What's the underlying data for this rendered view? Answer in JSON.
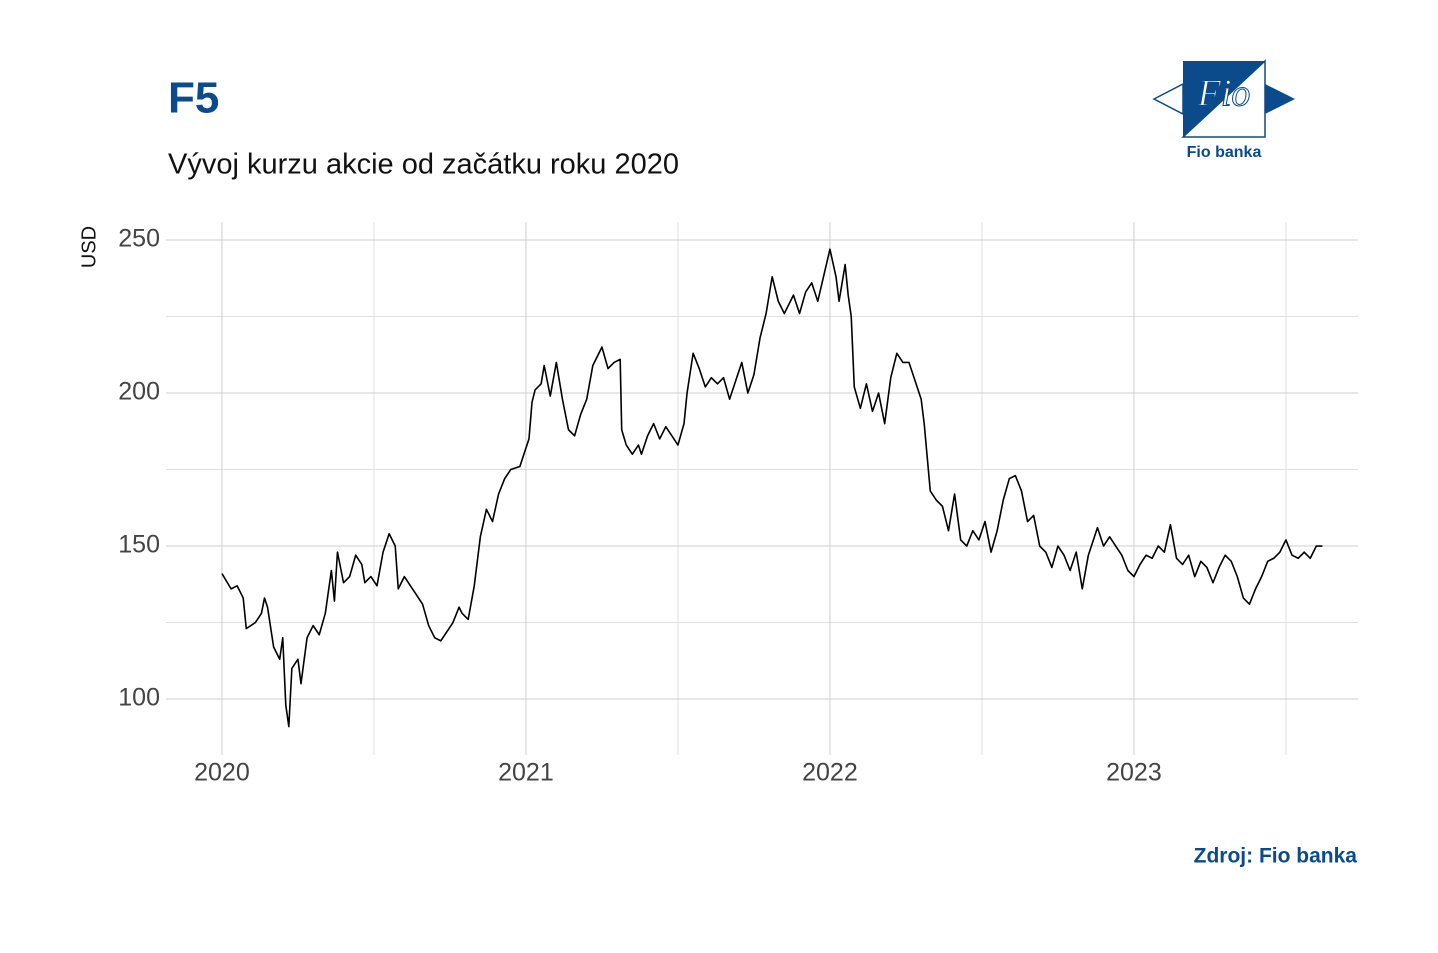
{
  "chart_data": {
    "type": "line",
    "title": "F5",
    "subtitle": "Vývoj kurzu akcie od začátku roku 2020",
    "y_label": "USD",
    "source": "Zdroj: Fio banka",
    "logo_text": "Fio",
    "logo_caption": "Fio banka",
    "grid": true,
    "minor_grid": true,
    "xlim": [
      2019.816,
      2023.737
    ],
    "xticks": [
      2020,
      2021,
      2022,
      2023
    ],
    "ylim": [
      81.7,
      255.9
    ],
    "yticks": [
      100,
      150,
      200,
      250
    ],
    "x": [
      2020.0,
      2020.03,
      2020.05,
      2020.07,
      2020.08,
      2020.11,
      2020.13,
      2020.14,
      2020.15,
      2020.17,
      2020.19,
      2020.2,
      2020.21,
      2020.22,
      2020.23,
      2020.25,
      2020.26,
      2020.28,
      2020.3,
      2020.32,
      2020.34,
      2020.36,
      2020.37,
      2020.38,
      2020.4,
      2020.42,
      2020.44,
      2020.46,
      2020.47,
      2020.49,
      2020.51,
      2020.53,
      2020.55,
      2020.57,
      2020.58,
      2020.6,
      2020.62,
      2020.64,
      2020.66,
      2020.68,
      2020.7,
      2020.72,
      2020.74,
      2020.76,
      2020.78,
      2020.79,
      2020.81,
      2020.83,
      2020.85,
      2020.87,
      2020.89,
      2020.91,
      2020.93,
      2020.95,
      2020.98,
      2021.01,
      2021.02,
      2021.03,
      2021.05,
      2021.06,
      2021.08,
      2021.1,
      2021.12,
      2021.14,
      2021.16,
      2021.18,
      2021.2,
      2021.22,
      2021.25,
      2021.27,
      2021.29,
      2021.31,
      2021.315,
      2021.33,
      2021.35,
      2021.37,
      2021.38,
      2021.4,
      2021.42,
      2021.44,
      2021.46,
      2021.48,
      2021.5,
      2021.52,
      2021.53,
      2021.55,
      2021.57,
      2021.59,
      2021.61,
      2021.63,
      2021.65,
      2021.67,
      2021.69,
      2021.71,
      2021.73,
      2021.75,
      2021.77,
      2021.79,
      2021.81,
      2021.83,
      2021.85,
      2021.88,
      2021.9,
      2021.92,
      2021.94,
      2021.96,
      2022.0,
      2022.02,
      2022.03,
      2022.05,
      2022.06,
      2022.07,
      2022.08,
      2022.1,
      2022.12,
      2022.14,
      2022.16,
      2022.18,
      2022.2,
      2022.22,
      2022.24,
      2022.26,
      2022.28,
      2022.3,
      2022.31,
      2022.33,
      2022.35,
      2022.37,
      2022.39,
      2022.41,
      2022.43,
      2022.45,
      2022.47,
      2022.49,
      2022.51,
      2022.53,
      2022.55,
      2022.57,
      2022.59,
      2022.61,
      2022.63,
      2022.65,
      2022.67,
      2022.69,
      2022.71,
      2022.73,
      2022.75,
      2022.77,
      2022.79,
      2022.81,
      2022.83,
      2022.85,
      2022.88,
      2022.9,
      2022.92,
      2022.94,
      2022.96,
      2022.98,
      2023.0,
      2023.02,
      2023.04,
      2023.06,
      2023.08,
      2023.1,
      2023.12,
      2023.14,
      2023.16,
      2023.18,
      2023.2,
      2023.22,
      2023.24,
      2023.26,
      2023.28,
      2023.3,
      2023.32,
      2023.34,
      2023.36,
      2023.38,
      2023.4,
      2023.42,
      2023.44,
      2023.46,
      2023.48,
      2023.5,
      2023.52,
      2023.54,
      2023.56,
      2023.58,
      2023.6,
      2023.62
    ],
    "series": [
      {
        "name": "F5",
        "color": "#000000",
        "values": [
          141,
          136,
          137,
          133,
          123,
          125,
          128,
          133,
          130,
          117,
          113,
          120,
          98,
          91,
          110,
          113,
          105,
          120,
          124,
          121,
          128,
          142,
          132,
          148,
          138,
          140,
          147,
          144,
          138,
          140,
          137,
          148,
          154,
          150,
          136,
          140,
          137,
          134,
          131,
          124,
          120,
          119,
          122,
          125,
          130,
          128,
          126,
          137,
          153,
          162,
          158,
          167,
          172,
          175,
          176,
          185,
          197,
          201,
          203,
          209,
          199,
          210,
          198,
          188,
          186,
          193,
          198,
          209,
          215,
          208,
          210,
          211,
          188,
          183,
          180,
          183,
          180,
          186,
          190,
          185,
          189,
          186,
          183,
          190,
          200,
          213,
          208,
          202,
          205,
          203,
          205,
          198,
          204,
          210,
          200,
          206,
          218,
          226,
          238,
          230,
          226,
          232,
          226,
          233,
          236,
          230,
          247,
          238,
          230,
          242,
          232,
          225,
          202,
          195,
          203,
          194,
          200,
          190,
          205,
          213,
          210,
          210,
          204,
          198,
          190,
          168,
          165,
          163,
          155,
          167,
          152,
          150,
          155,
          152,
          158,
          148,
          155,
          165,
          172,
          173,
          168,
          158,
          160,
          150,
          148,
          143,
          150,
          147,
          142,
          148,
          136,
          147,
          156,
          150,
          153,
          150,
          147,
          142,
          140,
          144,
          147,
          146,
          150,
          148,
          157,
          146,
          144,
          147,
          140,
          145,
          143,
          138,
          143,
          147,
          145,
          140,
          133,
          131,
          136,
          140,
          145,
          146,
          148,
          152,
          147,
          146,
          148,
          146,
          150,
          150
        ]
      }
    ]
  }
}
